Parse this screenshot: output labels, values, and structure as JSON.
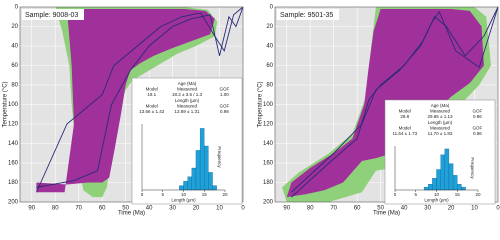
{
  "chart_data": [
    {
      "type": "line",
      "title": "Sample: 9008-03",
      "xlabel": "Time (Ma)",
      "ylabel": "Temperature (°C)",
      "xlim": [
        95,
        0
      ],
      "ylim": [
        0,
        200
      ],
      "y_inverted": true,
      "xticks": [
        90,
        80,
        70,
        60,
        50,
        40,
        30,
        20,
        10,
        0
      ],
      "yticks": [
        0,
        20,
        40,
        60,
        80,
        100,
        120,
        140,
        160,
        180,
        200
      ],
      "grid": true,
      "background": "#e3e3e3",
      "areas": [
        {
          "color": "#8fd07a",
          "x": [
            80,
            60,
            40,
            25,
            15,
            11,
            12,
            20,
            28,
            35,
            42,
            47,
            50,
            53,
            56,
            58,
            60,
            64,
            68,
            71,
            73,
            74,
            77,
            80
          ],
          "values": [
            0,
            0,
            0,
            0,
            3,
            15,
            30,
            40,
            48,
            58,
            68,
            75,
            85,
            110,
            150,
            185,
            195,
            195,
            188,
            150,
            100,
            60,
            25,
            0
          ]
        },
        {
          "color": "#a0309a",
          "x": [
            75,
            60,
            40,
            25,
            16,
            12,
            14,
            22,
            30,
            38,
            44,
            48,
            50,
            52,
            55,
            57,
            60,
            66,
            75,
            88,
            88,
            76,
            72,
            73,
            75
          ],
          "values": [
            2,
            2,
            2,
            2,
            4,
            12,
            28,
            35,
            42,
            50,
            58,
            65,
            80,
            110,
            150,
            175,
            180,
            180,
            182,
            180,
            190,
            190,
            120,
            60,
            2
          ]
        }
      ],
      "series": [
        {
          "color": "#2a2a78",
          "x": [
            88,
            72,
            62,
            56,
            48,
            40,
            30,
            22,
            14,
            10,
            6,
            3,
            0
          ],
          "values": [
            185,
            178,
            168,
            100,
            65,
            40,
            20,
            12,
            8,
            50,
            10,
            20,
            0
          ]
        },
        {
          "color": "#2a2a78",
          "x": [
            88,
            75,
            60,
            55,
            45,
            35,
            26,
            18,
            12,
            8,
            4,
            0
          ],
          "values": [
            190,
            120,
            90,
            60,
            40,
            20,
            10,
            6,
            30,
            45,
            8,
            0
          ]
        }
      ],
      "tables": [
        {
          "title": "Age (Ma)",
          "header": [
            "Model",
            "Measured",
            "GOF"
          ],
          "row": [
            "19.1",
            "18.2 ± 3.5 / 1.3",
            "1.00"
          ]
        },
        {
          "title": "Length (µm)",
          "header": [
            "Model",
            "Measured",
            "GOF"
          ],
          "row": [
            "13.66 ± 1.42",
            "13.69 ± 1.31",
            "0.98"
          ]
        }
      ]
    },
    {
      "type": "histogram",
      "xlabel": "Length (µm)",
      "ylabel": "Frequency",
      "color": "#1fa0d8",
      "bins": [
        0,
        1,
        2,
        3,
        4,
        5,
        6,
        7,
        8,
        9,
        10,
        11,
        12,
        13,
        14,
        15,
        16,
        17,
        18,
        19,
        20
      ],
      "values": [
        0,
        0,
        0,
        0,
        0,
        0,
        0,
        0,
        0,
        1,
        2,
        3,
        5,
        9,
        14,
        10,
        4,
        1,
        0,
        0
      ],
      "xlim": [
        0,
        20
      ],
      "ylim": [
        0,
        15
      ],
      "xticks": [
        0,
        5,
        10,
        15,
        20
      ]
    },
    {
      "type": "line",
      "title": "Sample: 9501-35",
      "xlabel": "Time (Ma)",
      "ylabel": "Temperature (°C)",
      "xlim": [
        95,
        0
      ],
      "ylim": [
        0,
        200
      ],
      "y_inverted": true,
      "xticks": [
        90,
        80,
        70,
        60,
        50,
        40,
        30,
        20,
        10,
        0
      ],
      "yticks": [
        0,
        20,
        40,
        60,
        80,
        100,
        120,
        140,
        160,
        180,
        200
      ],
      "grid": true,
      "background": "#e3e3e3",
      "areas": [
        {
          "color": "#8fd07a",
          "x": [
            52,
            40,
            30,
            20,
            10,
            5,
            3,
            8,
            14,
            22,
            30,
            38,
            45,
            52,
            58,
            65,
            72,
            80,
            90,
            92,
            85,
            72,
            62,
            56,
            54,
            52
          ],
          "values": [
            0,
            0,
            0,
            0,
            0,
            10,
            60,
            80,
            95,
            110,
            140,
            160,
            165,
            168,
            190,
            195,
            200,
            200,
            200,
            185,
            170,
            150,
            130,
            90,
            40,
            0
          ]
        },
        {
          "color": "#a0309a",
          "x": [
            50,
            38,
            28,
            20,
            12,
            7,
            6,
            12,
            20,
            28,
            36,
            45,
            52,
            58,
            66,
            74,
            82,
            90,
            88,
            80,
            70,
            62,
            57,
            55,
            53,
            50
          ],
          "values": [
            2,
            2,
            2,
            2,
            4,
            20,
            60,
            78,
            92,
            110,
            130,
            150,
            155,
            158,
            180,
            188,
            192,
            195,
            180,
            165,
            150,
            135,
            100,
            60,
            25,
            2
          ]
        }
      ],
      "series": [
        {
          "color": "#2a2a78",
          "x": [
            88,
            72,
            60,
            55,
            50,
            40,
            32,
            28,
            25,
            18,
            12,
            8,
            0
          ],
          "values": [
            195,
            160,
            135,
            95,
            80,
            60,
            35,
            15,
            5,
            45,
            55,
            62,
            0
          ]
        },
        {
          "color": "#2a2a78",
          "x": [
            88,
            70,
            58,
            52,
            42,
            33,
            27,
            22,
            14,
            6,
            0
          ],
          "values": [
            190,
            150,
            120,
            85,
            65,
            40,
            10,
            20,
            50,
            30,
            0
          ]
        }
      ],
      "tables": [
        {
          "title": "Age (Ma)",
          "header": [
            "Model",
            "Measured",
            "GOF"
          ],
          "row": [
            "29.8",
            "29.85 ± 1.13",
            "0.96"
          ]
        },
        {
          "title": "Length (µm)",
          "header": [
            "Model",
            "Measured",
            "GOF"
          ],
          "row": [
            "11.64 ± 1.73",
            "11.70 ± 1.83",
            "0.96"
          ]
        }
      ]
    },
    {
      "type": "histogram",
      "xlabel": "Length (µm)",
      "ylabel": "Frequency",
      "color": "#1fa0d8",
      "bins": [
        0,
        1,
        2,
        3,
        4,
        5,
        6,
        7,
        8,
        9,
        10,
        11,
        12,
        13,
        14,
        15,
        16,
        17,
        18,
        19,
        20
      ],
      "values": [
        0,
        0,
        0,
        0,
        0,
        0,
        0,
        1,
        2,
        4,
        7,
        12,
        14,
        9,
        5,
        2,
        1,
        0,
        0,
        0
      ],
      "xlim": [
        0,
        20
      ],
      "ylim": [
        0,
        15
      ],
      "xticks": [
        0,
        5,
        10,
        15,
        20
      ]
    }
  ]
}
